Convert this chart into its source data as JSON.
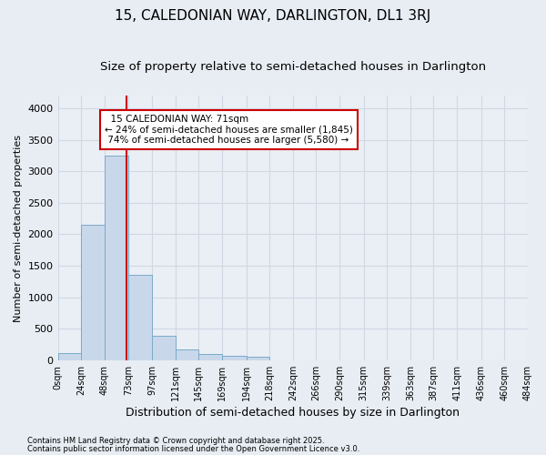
{
  "title": "15, CALEDONIAN WAY, DARLINGTON, DL1 3RJ",
  "subtitle": "Size of property relative to semi-detached houses in Darlington",
  "xlabel": "Distribution of semi-detached houses by size in Darlington",
  "ylabel": "Number of semi-detached properties",
  "footnote1": "Contains HM Land Registry data © Crown copyright and database right 2025.",
  "footnote2": "Contains public sector information licensed under the Open Government Licence v3.0.",
  "property_size": 71,
  "property_label": "15 CALEDONIAN WAY: 71sqm",
  "pct_smaller": 24,
  "pct_larger": 74,
  "n_smaller": 1845,
  "n_larger": 5580,
  "bar_color": "#c8d8ea",
  "bar_edge_color": "#7aaaca",
  "vline_color": "#cc0000",
  "annotation_box_edge_color": "#cc0000",
  "bin_edges": [
    0,
    24,
    48,
    73,
    97,
    121,
    145,
    169,
    194,
    218,
    242,
    266,
    290,
    315,
    339,
    363,
    387,
    411,
    436,
    460,
    484
  ],
  "bar_values": [
    110,
    2150,
    3250,
    1350,
    390,
    170,
    100,
    65,
    55,
    0,
    0,
    0,
    0,
    0,
    0,
    0,
    0,
    0,
    0,
    0
  ],
  "ylim": [
    0,
    4200
  ],
  "yticks": [
    0,
    500,
    1000,
    1500,
    2000,
    2500,
    3000,
    3500,
    4000
  ],
  "bg_color": "#e8edf3",
  "plot_bg_color": "#eaeff5",
  "grid_color": "#d0d8e4",
  "title_fontsize": 11,
  "subtitle_fontsize": 9.5,
  "ylabel_fontsize": 8,
  "xlabel_fontsize": 9,
  "tick_label_fontsize": 7,
  "ytick_fontsize": 8,
  "annotation_fontsize": 7.5,
  "footnote_fontsize": 6
}
